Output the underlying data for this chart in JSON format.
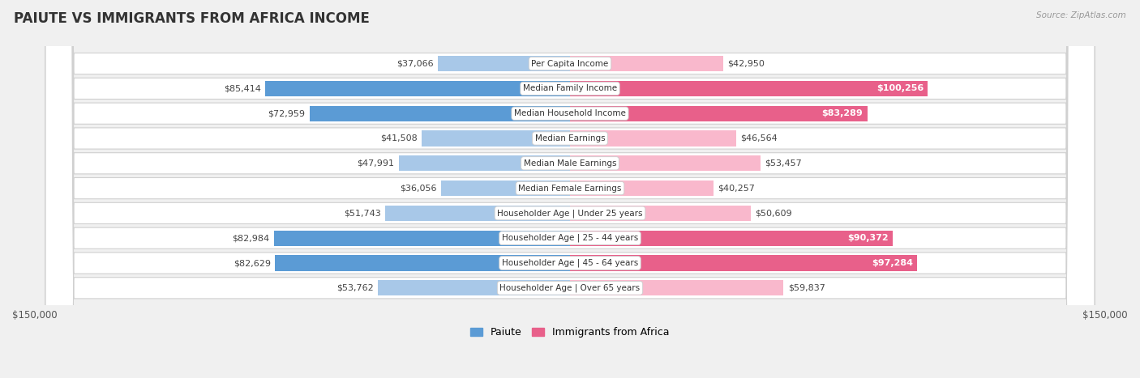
{
  "title": "PAIUTE VS IMMIGRANTS FROM AFRICA INCOME",
  "source": "Source: ZipAtlas.com",
  "categories": [
    "Per Capita Income",
    "Median Family Income",
    "Median Household Income",
    "Median Earnings",
    "Median Male Earnings",
    "Median Female Earnings",
    "Householder Age | Under 25 years",
    "Householder Age | 25 - 44 years",
    "Householder Age | 45 - 64 years",
    "Householder Age | Over 65 years"
  ],
  "paiute_values": [
    37066,
    85414,
    72959,
    41508,
    47991,
    36056,
    51743,
    82984,
    82629,
    53762
  ],
  "africa_values": [
    42950,
    100256,
    83289,
    46564,
    53457,
    40257,
    50609,
    90372,
    97284,
    59837
  ],
  "paiute_labels": [
    "$37,066",
    "$85,414",
    "$72,959",
    "$41,508",
    "$47,991",
    "$36,056",
    "$51,743",
    "$82,984",
    "$82,629",
    "$53,762"
  ],
  "africa_labels": [
    "$42,950",
    "$100,256",
    "$83,289",
    "$46,564",
    "$53,457",
    "$40,257",
    "$50,609",
    "$90,372",
    "$97,284",
    "$59,837"
  ],
  "paiute_color_light": "#a8c8e8",
  "paiute_color_dark": "#5b9bd5",
  "africa_color_light": "#f9b8cc",
  "africa_color_dark": "#e8608a",
  "africa_label_inside_threshold": 80000,
  "max_value": 150000,
  "bar_height": 0.62,
  "background_color": "#f0f0f0",
  "row_bg_color": "#ffffff",
  "legend_paiute": "Paiute",
  "legend_africa": "Immigrants from Africa",
  "xlabel_left": "$150,000",
  "xlabel_right": "$150,000",
  "title_fontsize": 12,
  "label_fontsize": 8,
  "cat_fontsize": 7.5
}
